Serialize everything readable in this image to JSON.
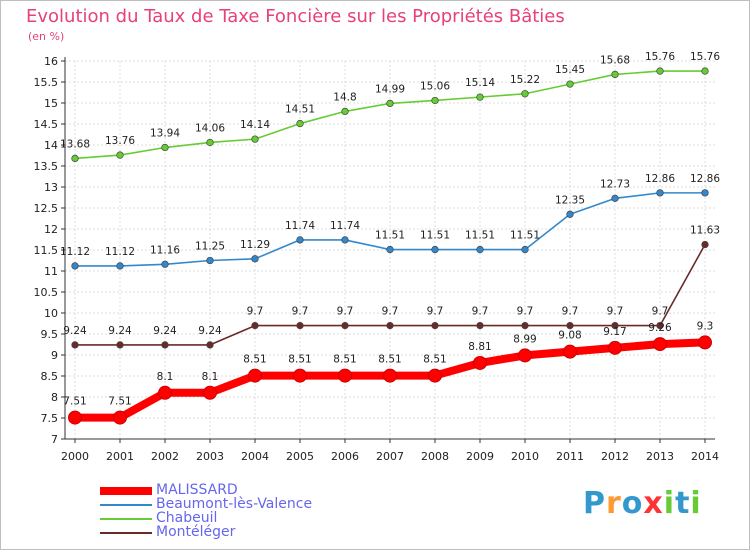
{
  "title": "Evolution du Taux de Taxe Foncière sur les Propriétés Bâties",
  "subtitle": "(en %)",
  "logo": {
    "text": "Proxiti",
    "colors": [
      "#3399cc",
      "#ff9933",
      "#3399cc",
      "#ff3333",
      "#66cc33",
      "#3399cc",
      "#66cc33"
    ]
  },
  "chart_data": {
    "type": "line",
    "title": "Evolution du Taux de Taxe Foncière sur les Propriétés Bâties",
    "ylabel": "(en %)",
    "xlabel": "",
    "ylim": [
      7,
      16
    ],
    "yticks": [
      "7",
      "7.5",
      "8",
      "8.5",
      "9",
      "9.5",
      "10",
      "10.5",
      "11",
      "11.5",
      "12",
      "12.5",
      "13",
      "13.5",
      "14",
      "14.5",
      "15",
      "15.5",
      "16"
    ],
    "categories": [
      "2000",
      "2001",
      "2002",
      "2003",
      "2004",
      "2005",
      "2006",
      "2007",
      "2008",
      "2009",
      "2010",
      "2011",
      "2012",
      "2013",
      "2014"
    ],
    "grid": true,
    "legend_position": "bottom-left",
    "series": [
      {
        "name": "MALISSARD",
        "color": "#ff0000",
        "values": [
          7.51,
          7.51,
          8.1,
          8.1,
          8.51,
          8.51,
          8.51,
          8.51,
          8.51,
          8.81,
          8.99,
          9.08,
          9.17,
          9.26,
          9.3
        ],
        "labels": [
          "7.51",
          "7.51",
          "8.1",
          "8.1",
          "8.51",
          "8.51",
          "8.51",
          "8.51",
          "8.51",
          "8.81",
          "8.99",
          "9.08",
          "9.17",
          "9.26",
          "9.3"
        ]
      },
      {
        "name": "Beaumont-lès-Valence",
        "color": "#3388cc",
        "values": [
          11.12,
          11.12,
          11.16,
          11.25,
          11.29,
          11.74,
          11.74,
          11.51,
          11.51,
          11.51,
          11.51,
          12.35,
          12.73,
          12.86,
          12.86
        ],
        "labels": [
          "11.12",
          "11.12",
          "11.16",
          "11.25",
          "11.29",
          "11.74",
          "11.74",
          "11.51",
          "11.51",
          "11.51",
          "11.51",
          "12.35",
          "12.73",
          "12.86",
          "12.86"
        ]
      },
      {
        "name": "Chabeuil",
        "color": "#66cc33",
        "values": [
          13.68,
          13.76,
          13.94,
          14.06,
          14.14,
          14.51,
          14.8,
          14.99,
          15.06,
          15.14,
          15.22,
          15.45,
          15.68,
          15.76,
          15.76
        ],
        "labels": [
          "13.68",
          "13.76",
          "13.94",
          "14.06",
          "14.14",
          "14.51",
          "14.8",
          "14.99",
          "15.06",
          "15.14",
          "15.22",
          "15.45",
          "15.68",
          "15.76",
          "15.76"
        ]
      },
      {
        "name": "Montéléger",
        "color": "#6b2a2a",
        "values": [
          9.24,
          9.24,
          9.24,
          9.24,
          9.7,
          9.7,
          9.7,
          9.7,
          9.7,
          9.7,
          9.7,
          9.7,
          9.7,
          9.7,
          11.63
        ],
        "labels": [
          "9.24",
          "9.24",
          "9.24",
          "9.24",
          "9.7",
          "9.7",
          "9.7",
          "9.7",
          "9.7",
          "9.7",
          "9.7",
          "9.7",
          "9.7",
          "9.7",
          "11.63"
        ]
      }
    ]
  }
}
